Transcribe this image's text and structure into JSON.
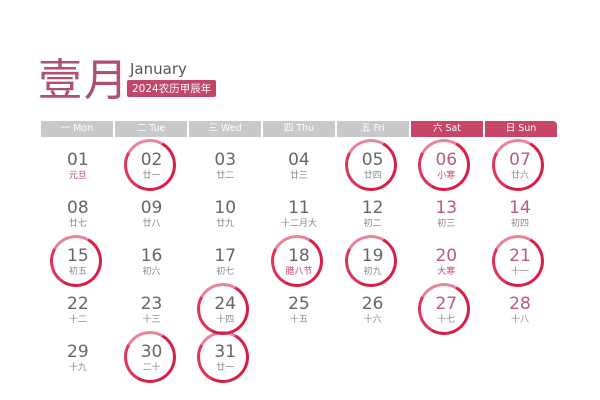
{
  "title": {
    "month_cn": "壹月",
    "month_en": "January",
    "badge": "2024农历甲辰年"
  },
  "colors": {
    "accent": "#c8456a",
    "ring": "#d81f43",
    "header_gray": "#c9c9cc"
  },
  "weekdays": [
    {
      "label": "一 Mon",
      "weekend": false
    },
    {
      "label": "二 Tue",
      "weekend": false
    },
    {
      "label": "三 Wed",
      "weekend": false
    },
    {
      "label": "四 Thu",
      "weekend": false
    },
    {
      "label": "五 Fri",
      "weekend": false
    },
    {
      "label": "六 Sat",
      "weekend": true
    },
    {
      "label": "日 Sun",
      "weekend": true
    }
  ],
  "weeks": [
    [
      {
        "day": "01",
        "lunar": "元旦",
        "fest": true
      },
      {
        "day": "02",
        "lunar": "廿一",
        "circled": true
      },
      {
        "day": "03",
        "lunar": "廿二"
      },
      {
        "day": "04",
        "lunar": "廿三"
      },
      {
        "day": "05",
        "lunar": "廿四",
        "circled": true
      },
      {
        "day": "06",
        "lunar": "小寒",
        "fest": true,
        "circled": true
      },
      {
        "day": "07",
        "lunar": "廿六",
        "circled": true
      }
    ],
    [
      {
        "day": "08",
        "lunar": "廿七"
      },
      {
        "day": "09",
        "lunar": "廿八"
      },
      {
        "day": "10",
        "lunar": "廿九"
      },
      {
        "day": "11",
        "lunar": "十二月大"
      },
      {
        "day": "12",
        "lunar": "初二"
      },
      {
        "day": "13",
        "lunar": "初三"
      },
      {
        "day": "14",
        "lunar": "初四"
      }
    ],
    [
      {
        "day": "15",
        "lunar": "初五",
        "circled": true
      },
      {
        "day": "16",
        "lunar": "初六"
      },
      {
        "day": "17",
        "lunar": "初七"
      },
      {
        "day": "18",
        "lunar": "腊八节",
        "fest": true,
        "circled": true
      },
      {
        "day": "19",
        "lunar": "初九",
        "circled": true
      },
      {
        "day": "20",
        "lunar": "大寒",
        "fest": true
      },
      {
        "day": "21",
        "lunar": "十一",
        "circled": true
      }
    ],
    [
      {
        "day": "22",
        "lunar": "十二"
      },
      {
        "day": "23",
        "lunar": "十三"
      },
      {
        "day": "24",
        "lunar": "十四",
        "circled": true
      },
      {
        "day": "25",
        "lunar": "十五"
      },
      {
        "day": "26",
        "lunar": "十六"
      },
      {
        "day": "27",
        "lunar": "十七",
        "circled": true
      },
      {
        "day": "28",
        "lunar": "十八"
      }
    ],
    [
      {
        "day": "29",
        "lunar": "十九"
      },
      {
        "day": "30",
        "lunar": "二十",
        "circled": true
      },
      {
        "day": "31",
        "lunar": "廿一",
        "circled": true
      },
      null,
      null,
      null,
      null
    ]
  ]
}
